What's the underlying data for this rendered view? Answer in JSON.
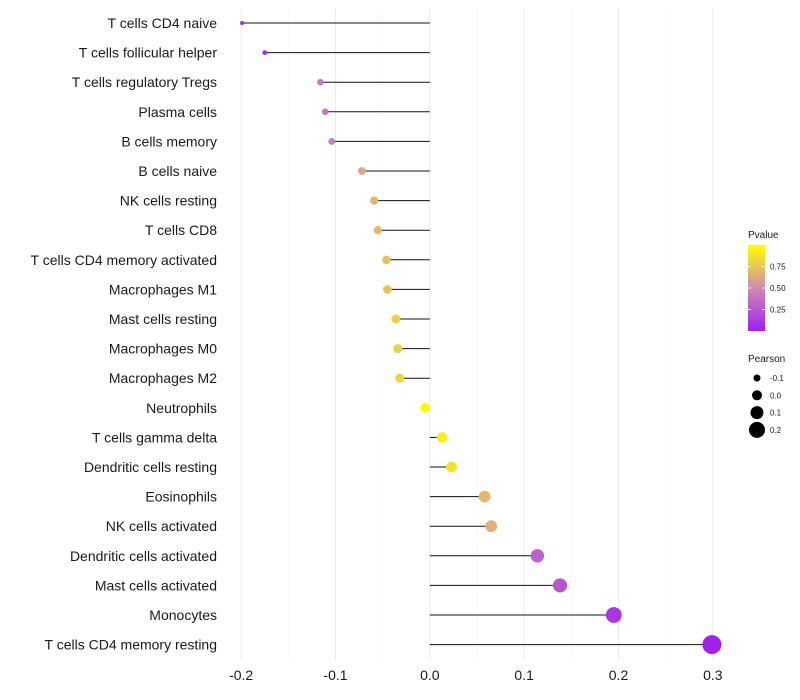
{
  "chart_data": {
    "type": "lollipop",
    "title": "",
    "xlabel": "",
    "ylabel": "",
    "xlim": [
      -0.215,
      0.315
    ],
    "xticks": [
      -0.2,
      -0.1,
      0.0,
      0.1,
      0.2,
      0.3
    ],
    "xtick_labels": [
      "-0.2",
      "-0.1",
      "0.0",
      "0.1",
      "0.2",
      "0.3"
    ],
    "grid": true,
    "categories": [
      "T cells CD4 naive",
      "T cells follicular helper",
      "T cells regulatory  Tregs",
      "Plasma cells",
      "B cells memory",
      "B cells naive",
      "NK cells resting",
      "T cells CD8",
      "T cells CD4 memory activated",
      "Macrophages M1",
      "Mast cells resting",
      "Macrophages M0",
      "Macrophages M2",
      "Neutrophils",
      "T cells gamma delta",
      "Dendritic cells resting",
      "Eosinophils",
      "NK cells activated",
      "Dendritic cells activated",
      "Mast cells activated",
      "Monocytes",
      "T cells CD4 memory resting"
    ],
    "values": [
      -0.199,
      -0.175,
      -0.116,
      -0.111,
      -0.104,
      -0.072,
      -0.059,
      -0.055,
      -0.046,
      -0.045,
      -0.036,
      -0.034,
      -0.032,
      -0.005,
      0.013,
      0.023,
      0.058,
      0.065,
      0.114,
      0.138,
      0.195,
      0.299
    ],
    "pvalues": [
      0.02,
      0.05,
      0.42,
      0.4,
      0.45,
      0.62,
      0.68,
      0.7,
      0.74,
      0.75,
      0.8,
      0.81,
      0.82,
      0.98,
      0.93,
      0.88,
      0.7,
      0.66,
      0.3,
      0.25,
      0.1,
      0.01
    ],
    "color_scale": {
      "title": "Pvalue",
      "domain": [
        0.0,
        1.0
      ],
      "low_color": "#a020f0",
      "mid_color": "#d08cb0",
      "high_color": "#ffff00",
      "ticks": [
        0.25,
        0.5,
        0.75
      ],
      "tick_labels": [
        "0.25",
        "0.50",
        "0.75"
      ]
    },
    "size_scale": {
      "title": "Pearson",
      "values": [
        -0.1,
        0.0,
        0.1,
        0.2
      ],
      "labels": [
        "-0.1",
        "0.0",
        "0.1",
        "0.2"
      ]
    }
  }
}
